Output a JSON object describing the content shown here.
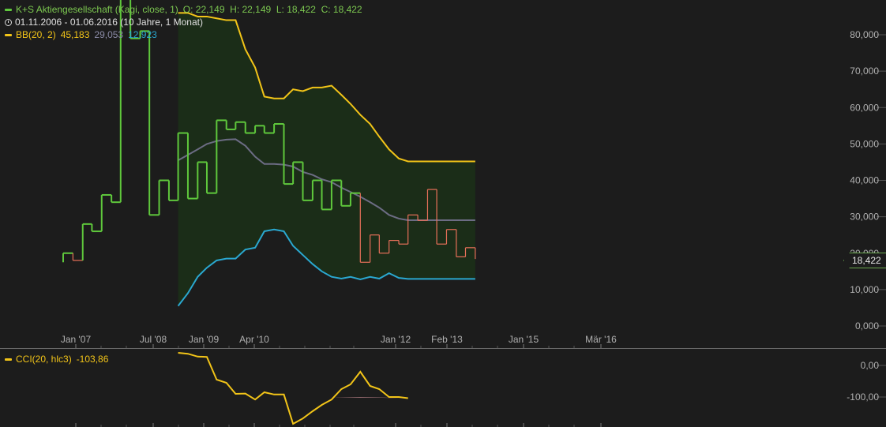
{
  "legend": {
    "main_label": "K+S Aktiengesellschaft (Kagi, close, 1)",
    "ohlc": "O: 22,149  H: 22,149  L: 18,422  C: 18,422",
    "period": "01.11.2006 - 01.06.2016 (10 Jahre, 1 Monat)",
    "bb_label": "BB(20, 2)",
    "bb_upper": "45,183",
    "bb_mid": "29,053",
    "bb_lower": "12,923",
    "cci_label": "CCI(20, hlc3)",
    "cci_value": "-103,86"
  },
  "last_price_tag": "18,422",
  "colors": {
    "background": "#1c1c1c",
    "kagi_up": "#5fc83c",
    "kagi_down": "#e8705a",
    "bb_upper": "#f2c418",
    "bb_mid": "#6c6c84",
    "bb_lower": "#2aa8d0",
    "bb_fill": "#1b2d18",
    "cci": "#f2c418",
    "cci_fill": "#e8a0a8"
  },
  "chart_data": [
    {
      "type": "line",
      "subtype": "kagi",
      "x_ticks": [
        "Jan '07",
        "Jul '08",
        "Jan '09",
        "Apr '10",
        "Jan '12",
        "Feb '13",
        "Jan '15",
        "Mär '16"
      ],
      "y_ticks": [
        "0,000",
        "10,000",
        "20,000",
        "30,000",
        "40,000",
        "50,000",
        "60,000",
        "70,000",
        "80,000"
      ],
      "ylim": [
        0,
        90
      ],
      "xlim": [
        2006.83,
        2016.42
      ],
      "kagi": [
        [
          2006.83,
          17.5
        ],
        [
          2006.83,
          20.0
        ],
        [
          2007.0,
          20.0
        ],
        [
          2007.0,
          18.0
        ],
        [
          2007.17,
          18.0
        ],
        [
          2007.17,
          28.0
        ],
        [
          2007.33,
          28.0
        ],
        [
          2007.33,
          26.0
        ],
        [
          2007.5,
          26.0
        ],
        [
          2007.5,
          36.0
        ],
        [
          2007.67,
          36.0
        ],
        [
          2007.67,
          34.0
        ],
        [
          2007.83,
          34.0
        ],
        [
          2007.83,
          90.0
        ],
        [
          2008.0,
          90.0
        ],
        [
          2008.0,
          79.0
        ],
        [
          2008.17,
          79.0
        ],
        [
          2008.17,
          81.0
        ],
        [
          2008.33,
          81.0
        ],
        [
          2008.33,
          30.5
        ],
        [
          2008.5,
          30.5
        ],
        [
          2008.5,
          40.0
        ],
        [
          2008.67,
          40.0
        ],
        [
          2008.67,
          34.5
        ],
        [
          2008.83,
          34.5
        ],
        [
          2008.83,
          53.0
        ],
        [
          2009.0,
          53.0
        ],
        [
          2009.0,
          35.0
        ],
        [
          2009.17,
          35.0
        ],
        [
          2009.17,
          45.0
        ],
        [
          2009.33,
          45.0
        ],
        [
          2009.33,
          36.5
        ],
        [
          2009.5,
          36.5
        ],
        [
          2009.5,
          56.5
        ],
        [
          2009.67,
          56.5
        ],
        [
          2009.67,
          54.0
        ],
        [
          2009.83,
          54.0
        ],
        [
          2009.83,
          56.0
        ],
        [
          2010.0,
          56.0
        ],
        [
          2010.0,
          53.0
        ],
        [
          2010.17,
          53.0
        ],
        [
          2010.17,
          55.0
        ],
        [
          2010.33,
          55.0
        ],
        [
          2010.33,
          53.0
        ],
        [
          2010.5,
          53.0
        ],
        [
          2010.5,
          55.5
        ],
        [
          2010.67,
          55.5
        ],
        [
          2010.67,
          39.0
        ],
        [
          2010.83,
          39.0
        ],
        [
          2010.83,
          45.0
        ],
        [
          2011.0,
          45.0
        ],
        [
          2011.0,
          34.5
        ],
        [
          2011.17,
          34.5
        ],
        [
          2011.17,
          40.0
        ],
        [
          2011.33,
          40.0
        ],
        [
          2011.33,
          32.0
        ],
        [
          2011.5,
          32.0
        ],
        [
          2011.5,
          40.0
        ],
        [
          2011.67,
          40.0
        ],
        [
          2011.67,
          33.0
        ],
        [
          2011.83,
          33.0
        ],
        [
          2011.83,
          36.5
        ],
        [
          2012.0,
          36.5
        ],
        [
          2012.0,
          17.5
        ],
        [
          2012.17,
          17.5
        ],
        [
          2012.17,
          25.0
        ],
        [
          2012.33,
          25.0
        ],
        [
          2012.33,
          20.0
        ],
        [
          2012.5,
          20.0
        ],
        [
          2012.5,
          23.5
        ],
        [
          2012.67,
          23.5
        ],
        [
          2012.67,
          22.5
        ],
        [
          2012.83,
          22.5
        ],
        [
          2012.83,
          30.5
        ],
        [
          2013.0,
          30.5
        ],
        [
          2013.0,
          29.0
        ],
        [
          2013.17,
          29.0
        ],
        [
          2013.17,
          37.5
        ],
        [
          2013.33,
          37.5
        ],
        [
          2013.33,
          22.5
        ],
        [
          2013.5,
          22.5
        ],
        [
          2013.5,
          26.5
        ],
        [
          2013.67,
          26.5
        ],
        [
          2013.67,
          19.0
        ],
        [
          2013.83,
          19.0
        ],
        [
          2013.83,
          21.5
        ],
        [
          2014.0,
          21.5
        ],
        [
          2014.0,
          18.4
        ]
      ],
      "bb_x": [
        2008.83,
        2009.0,
        2009.17,
        2009.33,
        2009.5,
        2009.67,
        2009.83,
        2010.0,
        2010.17,
        2010.33,
        2010.5,
        2010.67,
        2010.83,
        2011.0,
        2011.17,
        2011.33,
        2011.5,
        2011.67,
        2011.83,
        2012.0,
        2012.17,
        2012.33,
        2012.5,
        2012.67,
        2012.83,
        2013.0,
        2013.17,
        2013.33,
        2013.5,
        2013.67,
        2013.83,
        2014.0
      ],
      "bb_upper": [
        86.0,
        86.0,
        85.0,
        85.0,
        84.5,
        84.0,
        84.0,
        76.0,
        71.0,
        63.0,
        62.5,
        62.5,
        65.0,
        64.5,
        65.5,
        65.5,
        66.0,
        63.5,
        61.0,
        58.0,
        55.5,
        52.0,
        48.5,
        46.0,
        45.2,
        45.2,
        45.2,
        45.2,
        45.2,
        45.2,
        45.2,
        45.2
      ],
      "bb_mid": [
        45.5,
        47.0,
        48.5,
        50.0,
        50.8,
        51.2,
        51.3,
        49.5,
        46.5,
        44.5,
        44.5,
        44.3,
        43.8,
        42.3,
        41.5,
        40.3,
        39.5,
        38.0,
        36.8,
        35.5,
        34.0,
        32.5,
        30.5,
        29.5,
        29.05,
        29.05,
        29.05,
        29.05,
        29.05,
        29.05,
        29.05,
        29.05
      ],
      "bb_lower": [
        5.5,
        9.0,
        13.5,
        16.0,
        18.0,
        18.5,
        18.5,
        21.0,
        21.5,
        26.0,
        26.5,
        26.0,
        22.0,
        19.5,
        17.0,
        15.0,
        13.5,
        13.0,
        13.5,
        12.8,
        13.5,
        13.0,
        14.5,
        13.2,
        12.92,
        12.92,
        12.92,
        12.92,
        12.92,
        12.92,
        12.92,
        12.92
      ]
    },
    {
      "type": "line",
      "subtype": "cci",
      "y_ticks": [
        "0,00",
        "-100,00"
      ],
      "ylim": [
        -185,
        60
      ],
      "x": [
        2008.83,
        2009.0,
        2009.17,
        2009.33,
        2009.5,
        2009.67,
        2009.83,
        2010.0,
        2010.17,
        2010.33,
        2010.5,
        2010.67,
        2010.83,
        2011.0,
        2011.17,
        2011.33,
        2011.5,
        2011.67,
        2011.83,
        2012.0,
        2012.17,
        2012.33,
        2012.5,
        2012.67,
        2012.83
      ],
      "values": [
        40.0,
        37.0,
        28.0,
        27.0,
        -45.0,
        -55.0,
        -90.0,
        -89.0,
        -108.0,
        -85.0,
        -92.0,
        -92.0,
        -185.0,
        -168.0,
        -145.0,
        -125.0,
        -108.0,
        -75.0,
        -60.0,
        -20.0,
        -65.0,
        -75.0,
        -100.0,
        -100.0,
        -103.86
      ]
    }
  ]
}
